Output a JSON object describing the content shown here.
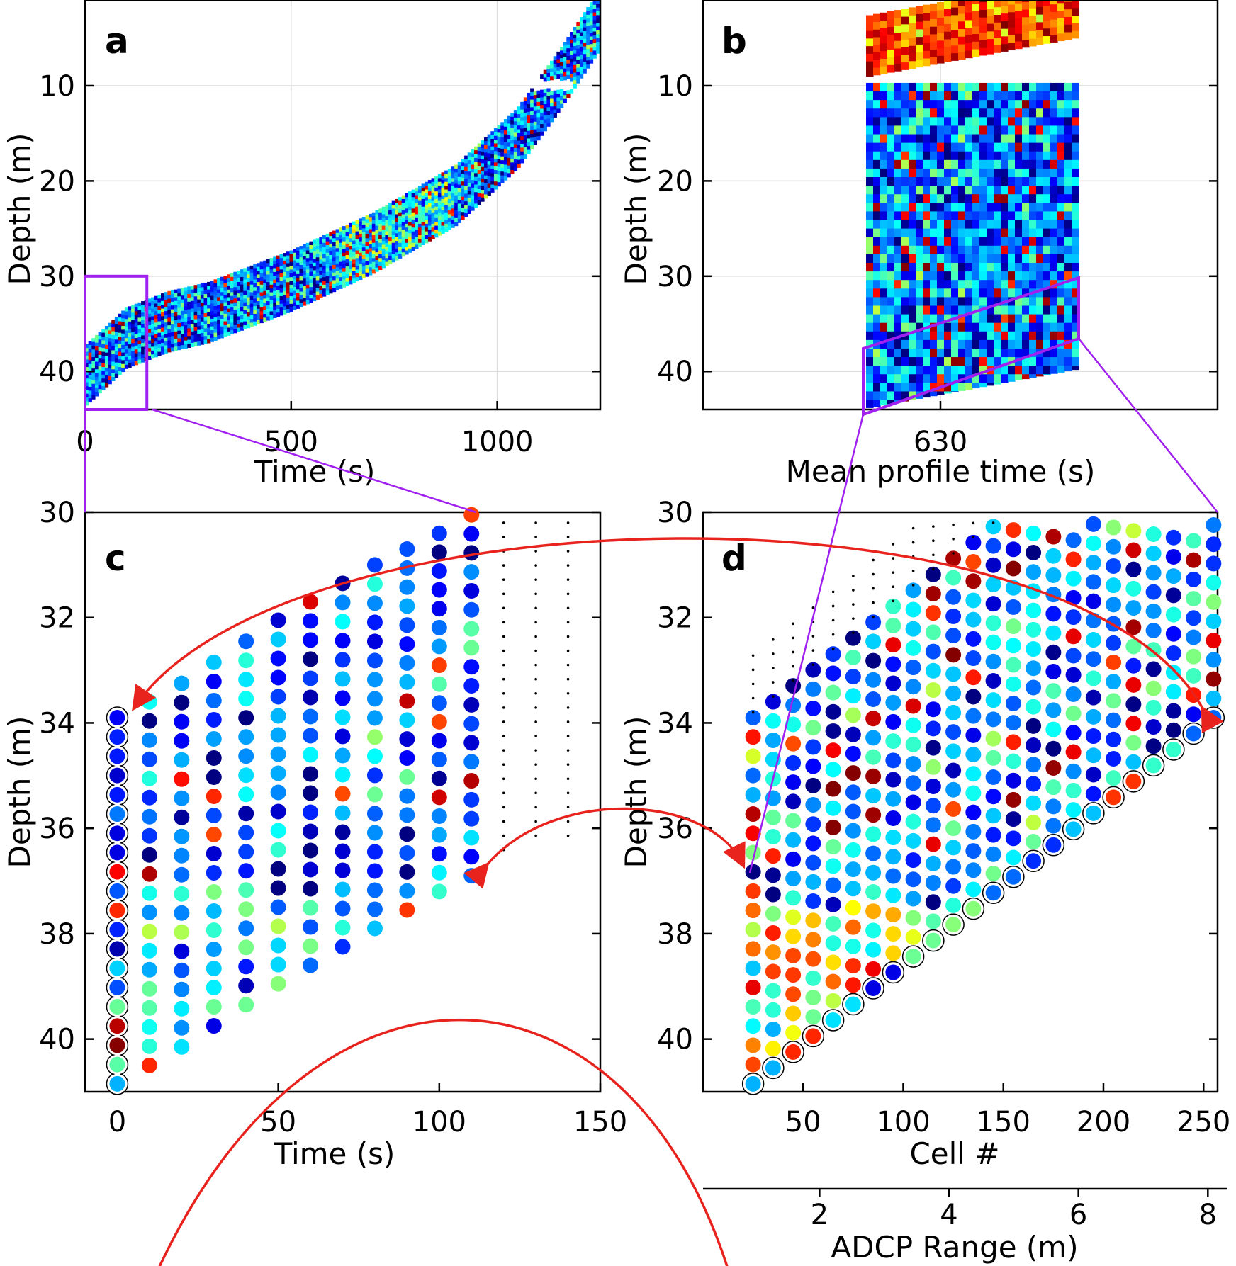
{
  "chart_data": [
    {
      "panel": "a",
      "type": "heatmap",
      "panel_label": "a",
      "xlabel": "Time (s)",
      "ylabel": "Depth (m)",
      "xlim": [
        0,
        1250
      ],
      "ylim": [
        44,
        1
      ],
      "xticks": [
        0,
        500,
        1000
      ],
      "yticks": [
        10,
        20,
        30,
        40
      ],
      "grid": true,
      "colormap": "jet",
      "depth_track": {
        "time": [
          0,
          100,
          200,
          300,
          500,
          700,
          900,
          1050,
          1150,
          1250
        ],
        "depth": [
          40.5,
          36.5,
          34.8,
          33.8,
          30.5,
          26.5,
          21.5,
          15.5,
          9.5,
          3.0
        ]
      },
      "zoom_box": {
        "time": [
          0,
          150
        ],
        "depth": [
          30,
          44
        ]
      }
    },
    {
      "panel": "b",
      "type": "heatmap",
      "panel_label": "b",
      "xlabel": "Mean profile time (s)",
      "ylabel": "Depth (m)",
      "xticks": [
        630
      ],
      "yticks": [
        10,
        20,
        30,
        40
      ],
      "ylim": [
        44,
        1
      ],
      "grid": true,
      "colormap": "jet"
    },
    {
      "panel": "c",
      "type": "scatter",
      "panel_label": "c",
      "xlabel": "Time (s)",
      "ylabel": "Depth (m)",
      "xlim": [
        -10,
        150
      ],
      "ylim": [
        41,
        30
      ],
      "xticks": [
        0,
        50,
        100,
        150
      ],
      "yticks": [
        30,
        32,
        34,
        36,
        38,
        40
      ],
      "columns": [
        {
          "time": 0,
          "top": 33.9,
          "bottom": 40.85,
          "n": 20
        },
        {
          "time": 10,
          "top": 33.6,
          "bottom": 40.5,
          "n": 20
        },
        {
          "time": 20,
          "top": 33.25,
          "bottom": 40.15,
          "n": 20
        },
        {
          "time": 30,
          "top": 32.85,
          "bottom": 39.75,
          "n": 20
        },
        {
          "time": 40,
          "top": 32.45,
          "bottom": 39.35,
          "n": 20
        },
        {
          "time": 50,
          "top": 32.05,
          "bottom": 38.95,
          "n": 20
        },
        {
          "time": 60,
          "top": 31.7,
          "bottom": 38.6,
          "n": 20
        },
        {
          "time": 70,
          "top": 31.35,
          "bottom": 38.25,
          "n": 20
        },
        {
          "time": 80,
          "top": 31.0,
          "bottom": 37.9,
          "n": 20
        },
        {
          "time": 90,
          "top": 30.7,
          "bottom": 37.55,
          "n": 20
        },
        {
          "time": 100,
          "top": 30.4,
          "bottom": 37.2,
          "n": 20
        },
        {
          "time": 110,
          "top": 30.05,
          "bottom": 36.9,
          "n": 20
        }
      ],
      "dotted_columns": [
        {
          "time": 120,
          "top": 30.2,
          "bottom": 36.6
        },
        {
          "time": 130,
          "top": 30.2,
          "bottom": 36.4
        },
        {
          "time": 140,
          "top": 30.2,
          "bottom": 36.3
        }
      ]
    },
    {
      "panel": "d",
      "type": "scatter",
      "panel_label": "d",
      "xlabel": "Cell #",
      "ylabel": "Depth (m)",
      "x2label": "ADCP Range (m)",
      "xlim": [
        0,
        257
      ],
      "ylim": [
        41,
        30
      ],
      "xticks": [
        50,
        100,
        150,
        200,
        250
      ],
      "yticks": [
        30,
        32,
        34,
        36,
        38,
        40
      ],
      "x2ticks": [
        2,
        4,
        6,
        8
      ],
      "x2lim": [
        0.2,
        8.15
      ],
      "cells": {
        "first": 25,
        "last": 255,
        "step": 10,
        "bottom_first": 40.85,
        "bottom_last": 33.9,
        "count": 20
      }
    }
  ]
}
